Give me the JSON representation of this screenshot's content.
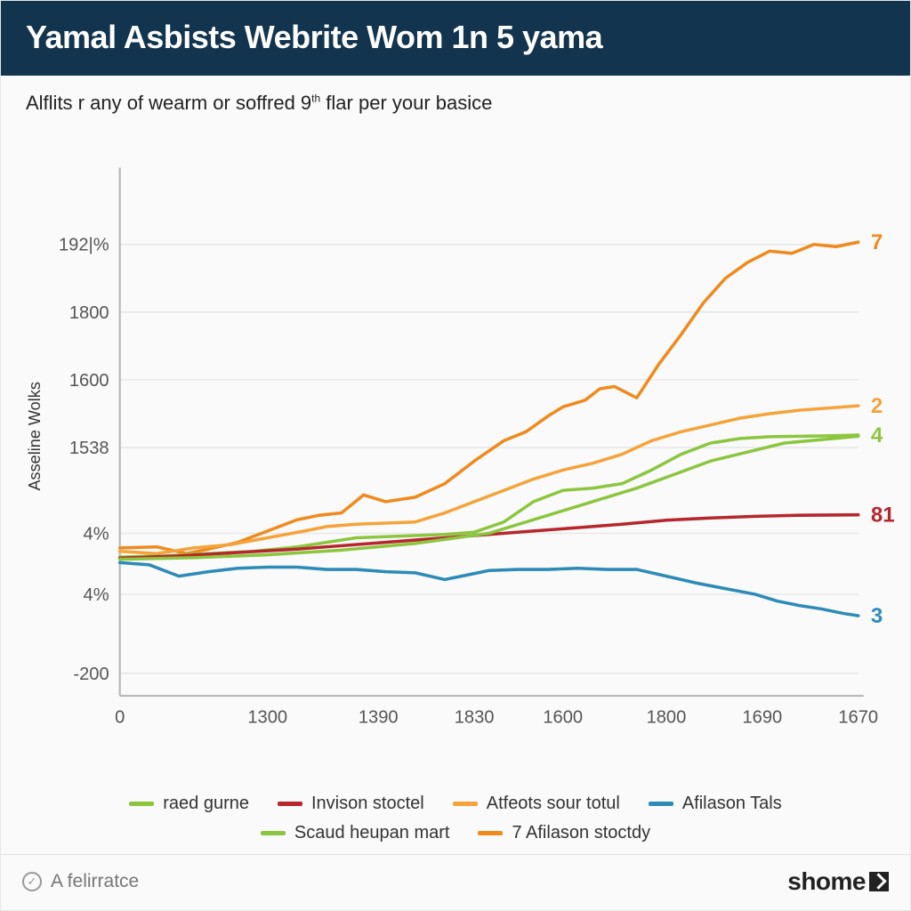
{
  "title": "Yamal Asbists Webrite Wom 1n 5 yama",
  "subtitle_pre": "Alflits r any of wearm or soffred 9",
  "subtitle_post": " flar per your basice",
  "footer_source": "A felirratce",
  "brand": "shome",
  "chart": {
    "type": "line",
    "background": "#fafafa",
    "grid_color": "#e7e7e7",
    "axis_color": "#b3b3b3",
    "tick_color": "#555555",
    "tick_fontsize": 20,
    "ylabel": "Asseline Wolks",
    "ylabel_fontsize": 18,
    "line_width": 3.5,
    "x_domain": [
      0,
      100
    ],
    "y_domain": [
      -300,
      2000
    ],
    "y_ticks": [
      {
        "v": -200,
        "label": "-200"
      },
      {
        "v": 150,
        "label": "4%"
      },
      {
        "v": 420,
        "label": "4%"
      },
      {
        "v": 800,
        "label": "1538"
      },
      {
        "v": 1100,
        "label": "1600"
      },
      {
        "v": 1400,
        "label": "1800"
      },
      {
        "v": 1700,
        "label": "192|%"
      }
    ],
    "x_ticks": [
      {
        "v": 0,
        "label": "0"
      },
      {
        "v": 20,
        "label": "1300"
      },
      {
        "v": 35,
        "label": "1390"
      },
      {
        "v": 48,
        "label": "1830"
      },
      {
        "v": 60,
        "label": "1600"
      },
      {
        "v": 74,
        "label": "1800"
      },
      {
        "v": 87,
        "label": "1690"
      },
      {
        "v": 100,
        "label": "1670"
      }
    ],
    "series": [
      {
        "name": "7 Afilason stoctdy",
        "color": "#f08a1d",
        "end_label": "7",
        "points": [
          [
            0,
            355
          ],
          [
            5,
            360
          ],
          [
            9,
            330
          ],
          [
            12,
            350
          ],
          [
            16,
            380
          ],
          [
            20,
            430
          ],
          [
            24,
            480
          ],
          [
            27,
            500
          ],
          [
            30,
            510
          ],
          [
            33,
            590
          ],
          [
            36,
            560
          ],
          [
            40,
            580
          ],
          [
            44,
            640
          ],
          [
            48,
            740
          ],
          [
            52,
            830
          ],
          [
            55,
            870
          ],
          [
            58,
            940
          ],
          [
            60,
            980
          ],
          [
            63,
            1010
          ],
          [
            65,
            1060
          ],
          [
            67,
            1070
          ],
          [
            70,
            1020
          ],
          [
            73,
            1170
          ],
          [
            76,
            1300
          ],
          [
            79,
            1440
          ],
          [
            82,
            1550
          ],
          [
            85,
            1620
          ],
          [
            88,
            1670
          ],
          [
            91,
            1660
          ],
          [
            94,
            1700
          ],
          [
            97,
            1690
          ],
          [
            100,
            1710
          ]
        ]
      },
      {
        "name": "Atfeots sour totul",
        "color": "#f5a33a",
        "end_label": "2",
        "points": [
          [
            0,
            340
          ],
          [
            5,
            330
          ],
          [
            10,
            355
          ],
          [
            15,
            370
          ],
          [
            20,
            400
          ],
          [
            25,
            430
          ],
          [
            28,
            450
          ],
          [
            32,
            460
          ],
          [
            36,
            465
          ],
          [
            40,
            470
          ],
          [
            44,
            510
          ],
          [
            48,
            560
          ],
          [
            52,
            610
          ],
          [
            56,
            660
          ],
          [
            60,
            700
          ],
          [
            64,
            730
          ],
          [
            68,
            770
          ],
          [
            72,
            830
          ],
          [
            76,
            870
          ],
          [
            80,
            900
          ],
          [
            84,
            930
          ],
          [
            88,
            950
          ],
          [
            92,
            965
          ],
          [
            96,
            975
          ],
          [
            100,
            985
          ]
        ]
      },
      {
        "name": "raed gurne",
        "color": "#8cc63f",
        "end_label": "4",
        "points": [
          [
            0,
            315
          ],
          [
            6,
            320
          ],
          [
            12,
            330
          ],
          [
            18,
            340
          ],
          [
            24,
            360
          ],
          [
            28,
            380
          ],
          [
            32,
            400
          ],
          [
            36,
            405
          ],
          [
            40,
            410
          ],
          [
            44,
            415
          ],
          [
            48,
            425
          ],
          [
            52,
            470
          ],
          [
            56,
            560
          ],
          [
            60,
            610
          ],
          [
            64,
            620
          ],
          [
            68,
            640
          ],
          [
            72,
            700
          ],
          [
            76,
            770
          ],
          [
            80,
            820
          ],
          [
            84,
            840
          ],
          [
            88,
            848
          ],
          [
            92,
            850
          ],
          [
            96,
            852
          ],
          [
            100,
            855
          ]
        ]
      },
      {
        "name": "Invison stoctel",
        "color": "#b5272d",
        "end_label": "81",
        "points": [
          [
            0,
            310
          ],
          [
            8,
            320
          ],
          [
            16,
            335
          ],
          [
            24,
            350
          ],
          [
            32,
            370
          ],
          [
            40,
            390
          ],
          [
            48,
            410
          ],
          [
            56,
            430
          ],
          [
            62,
            445
          ],
          [
            68,
            460
          ],
          [
            74,
            478
          ],
          [
            80,
            488
          ],
          [
            86,
            495
          ],
          [
            92,
            500
          ],
          [
            100,
            502
          ]
        ]
      },
      {
        "name": "Afilason Tals",
        "color": "#2d8bb8",
        "end_label": "3",
        "points": [
          [
            0,
            290
          ],
          [
            4,
            280
          ],
          [
            8,
            230
          ],
          [
            12,
            250
          ],
          [
            16,
            265
          ],
          [
            20,
            270
          ],
          [
            24,
            270
          ],
          [
            28,
            260
          ],
          [
            32,
            260
          ],
          [
            36,
            250
          ],
          [
            40,
            245
          ],
          [
            44,
            215
          ],
          [
            47,
            235
          ],
          [
            50,
            255
          ],
          [
            54,
            260
          ],
          [
            58,
            260
          ],
          [
            62,
            265
          ],
          [
            66,
            260
          ],
          [
            70,
            260
          ],
          [
            74,
            230
          ],
          [
            78,
            200
          ],
          [
            82,
            175
          ],
          [
            86,
            150
          ],
          [
            89,
            120
          ],
          [
            92,
            100
          ],
          [
            95,
            85
          ],
          [
            98,
            65
          ],
          [
            100,
            55
          ]
        ]
      },
      {
        "name": "Scaud heupan mart",
        "color": "#8cc63f",
        "end_label": "",
        "points": [
          [
            0,
            305
          ],
          [
            10,
            312
          ],
          [
            20,
            325
          ],
          [
            30,
            345
          ],
          [
            40,
            375
          ],
          [
            50,
            420
          ],
          [
            60,
            520
          ],
          [
            70,
            620
          ],
          [
            80,
            740
          ],
          [
            90,
            820
          ],
          [
            100,
            850
          ]
        ]
      }
    ],
    "legend_order": [
      "raed gurne",
      "Invison stoctel",
      "Atfeots sour totul",
      "Afilason Tals",
      "Scaud heupan mart",
      "7 Afilason stoctdy"
    ]
  }
}
